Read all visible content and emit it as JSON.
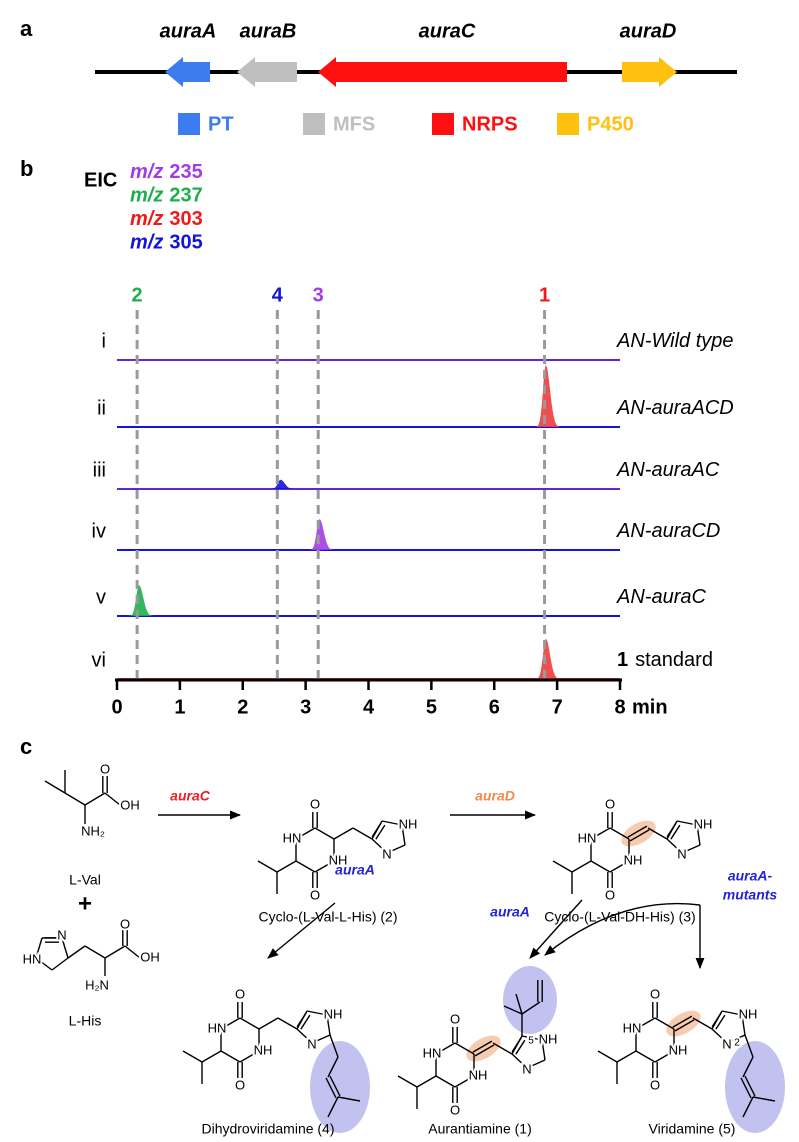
{
  "panel_a": {
    "label": "a",
    "genes": [
      {
        "name": "auraA",
        "color": "#3d7cf0"
      },
      {
        "name": "auraB",
        "color": "#bfbfbf"
      },
      {
        "name": "auraC",
        "color": "#ff1010"
      },
      {
        "name": "auraD",
        "color": "#ffc010"
      }
    ],
    "legend": [
      {
        "label": "PT",
        "color": "#3d7cf0"
      },
      {
        "label": "MFS",
        "color": "#bfbfbf"
      },
      {
        "label": "NRPS",
        "color": "#ff1010"
      },
      {
        "label": "P450",
        "color": "#ffc010"
      }
    ]
  },
  "chart_data": {
    "type": "chromatogram",
    "label": "b",
    "ylabel": "EIC",
    "series": [
      {
        "prefix": "m/z",
        "name": "235",
        "color": "#a23ce6"
      },
      {
        "prefix": "m/z",
        "name": "237",
        "color": "#1fae4f"
      },
      {
        "prefix": "m/z",
        "name": "303",
        "color": "#f01818"
      },
      {
        "prefix": "m/z",
        "name": "305",
        "color": "#1414d8"
      }
    ],
    "markers": [
      {
        "label": "2",
        "x": 0.32,
        "color": "#1fae4f"
      },
      {
        "label": "4",
        "x": 2.55,
        "color": "#1414d8"
      },
      {
        "label": "3",
        "x": 3.2,
        "color": "#a23ce6"
      },
      {
        "label": "1",
        "x": 6.8,
        "color": "#f01818"
      }
    ],
    "traces": [
      {
        "name": "i",
        "label": "AN-Wild type",
        "color": "#5a2ad8",
        "peaks": []
      },
      {
        "name": "ii",
        "label": "AN-auraACD",
        "color": "#1414d8",
        "peaks": [
          {
            "x": 6.82,
            "height": 1.0,
            "color": "#f03c3c"
          }
        ]
      },
      {
        "name": "iii",
        "label": "AN-auraAC",
        "color": "#5a2ad8",
        "peaks": [
          {
            "x": 2.6,
            "height": 0.15,
            "color": "#1414d8"
          }
        ]
      },
      {
        "name": "iv",
        "label": "AN-auraCD",
        "color": "#1414d8",
        "peaks": [
          {
            "x": 3.22,
            "height": 0.5,
            "color": "#a23ce6"
          }
        ]
      },
      {
        "name": "v",
        "label": "AN-auraC",
        "color": "#1414d8",
        "peaks": [
          {
            "x": 0.35,
            "height": 0.5,
            "color": "#1fae4f"
          }
        ]
      },
      {
        "name": "vi",
        "compound": "1",
        "label": "standard",
        "color": "#f03c3c",
        "peaks": [
          {
            "x": 6.82,
            "height": 0.65,
            "color": "#f03c3c"
          }
        ]
      }
    ],
    "xlim": [
      0,
      8
    ],
    "xticks": [
      0,
      1,
      2,
      3,
      4,
      5,
      6,
      7,
      8
    ],
    "xlabel": "min"
  },
  "panel_c": {
    "label": "c",
    "plus": "+",
    "enzymes": [
      {
        "lines": [
          "auraC"
        ],
        "color": "#e8202a"
      },
      {
        "lines": [
          "auraD"
        ],
        "color": "#f08a4b"
      },
      {
        "lines": [
          "auraA"
        ],
        "color": "#2323d8"
      },
      {
        "lines": [
          "auraA"
        ],
        "color": "#2323d8"
      },
      {
        "lines": [
          "auraA-",
          "mutants"
        ],
        "color": "#2323d8"
      }
    ],
    "compounds": [
      {
        "name": "L-Val",
        "atoms": [
          "O",
          "OH",
          "NH₂"
        ]
      },
      {
        "name": "L-His",
        "atoms": [
          "O",
          "OH",
          "H₂N",
          "N",
          "HN"
        ]
      },
      {
        "name": "Cyclo-(L-Val-L-His) (2)",
        "atoms": [
          "O",
          "HN",
          "NH",
          "O",
          "NH",
          "N"
        ]
      },
      {
        "name": "Cyclo-(L-Val-DH-His) (3)",
        "atoms": [
          "O",
          "HN",
          "NH",
          "O",
          "NH",
          "N"
        ]
      },
      {
        "name": "Dihydroviridamine (4)",
        "atoms": [
          "O",
          "HN",
          "NH",
          "O",
          "NH",
          "N"
        ]
      },
      {
        "name": "Aurantiamine (1)",
        "atoms": [
          "O",
          "HN",
          "NH",
          "O",
          "NH",
          "N",
          "5"
        ]
      },
      {
        "name": "Viridamine (5)",
        "atoms": [
          "O",
          "HN",
          "NH",
          "O",
          "NH",
          "N",
          "2"
        ]
      }
    ]
  }
}
